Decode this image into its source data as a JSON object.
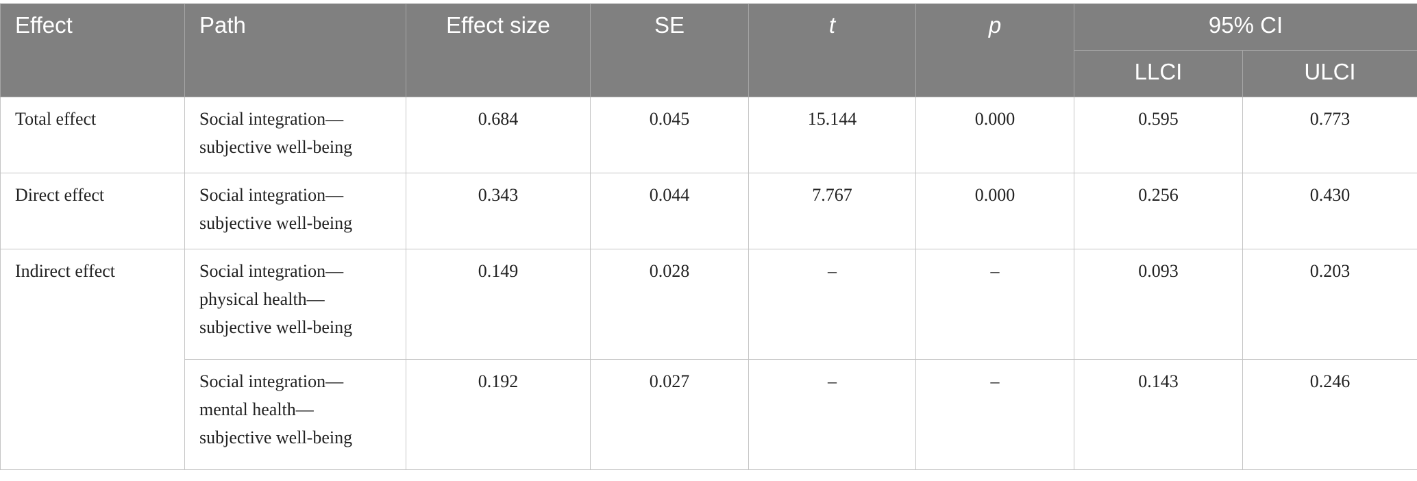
{
  "table": {
    "header": {
      "columns": [
        "Effect",
        "Path",
        "Effect size",
        "SE",
        "t",
        "p",
        "95% CI"
      ],
      "sub_columns": [
        "LLCI",
        "ULCI"
      ]
    },
    "groups": [
      {
        "effect": "Total effect",
        "rows": [
          {
            "path": [
              "Social integration—",
              "subjective well-being"
            ],
            "cells": [
              "0.684",
              "0.045",
              "15.144",
              "0.000",
              "0.595",
              "0.773"
            ]
          }
        ]
      },
      {
        "effect": "Direct effect",
        "rows": [
          {
            "path": [
              "Social integration—",
              "subjective well-being"
            ],
            "cells": [
              "0.343",
              "0.044",
              "7.767",
              "0.000",
              "0.256",
              "0.430"
            ]
          }
        ]
      },
      {
        "effect": "Indirect effect",
        "rows": [
          {
            "path": [
              "Social integration—",
              "physical health—",
              "subjective well-being"
            ],
            "cells": [
              "0.149",
              "0.028",
              "–",
              "–",
              "0.093",
              "0.203"
            ]
          },
          {
            "path": [
              "Social integration—",
              "mental health—",
              "subjective well-being"
            ],
            "cells": [
              "0.192",
              "0.027",
              "–",
              "–",
              "0.143",
              "0.246"
            ]
          }
        ]
      }
    ]
  }
}
